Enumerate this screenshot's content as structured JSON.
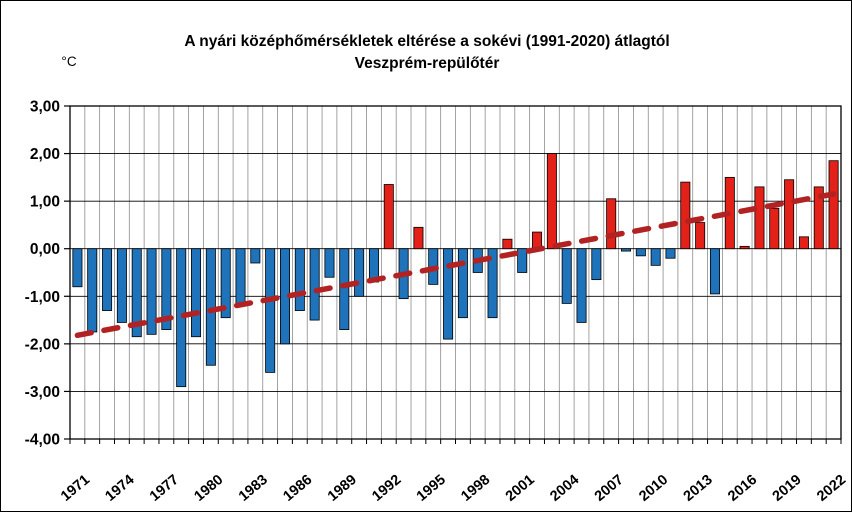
{
  "title_line1": "A nyári középhőmérsékletek eltérése a sokévi (1991-2020) átlagtól",
  "title_line2": "Veszprém-repülőtér",
  "y_axis_unit": "°C",
  "chart_data": {
    "type": "bar",
    "title": "A nyári középhőmérsékletek eltérése a sokévi (1991-2020) átlagtól",
    "subtitle": "Veszprém-repülőtér",
    "ylabel": "°C",
    "xlabel": "",
    "ylim": [
      -4,
      3
    ],
    "ytick_step": 1,
    "ytick_labels": [
      "3,00",
      "2,00",
      "1,00",
      "0,00",
      "-1,00",
      "-2,00",
      "-3,00",
      "-4,00"
    ],
    "grid": true,
    "legend_position": "none",
    "categories": [
      "1971",
      "1972",
      "1973",
      "1974",
      "1975",
      "1976",
      "1977",
      "1978",
      "1979",
      "1980",
      "1981",
      "1982",
      "1983",
      "1984",
      "1985",
      "1986",
      "1987",
      "1988",
      "1989",
      "1990",
      "1991",
      "1992",
      "1993",
      "1994",
      "1995",
      "1996",
      "1997",
      "1998",
      "1999",
      "2000",
      "2001",
      "2002",
      "2003",
      "2004",
      "2005",
      "2006",
      "2007",
      "2008",
      "2009",
      "2010",
      "2011",
      "2012",
      "2013",
      "2014",
      "2015",
      "2016",
      "2017",
      "2018",
      "2019",
      "2020",
      "2021",
      "2022"
    ],
    "values": [
      -0.8,
      -1.75,
      -1.3,
      -1.55,
      -1.85,
      -1.8,
      -1.7,
      -2.9,
      -1.85,
      -2.45,
      -1.45,
      -1.15,
      -0.3,
      -2.6,
      -2.0,
      -1.3,
      -1.5,
      -0.6,
      -1.7,
      -1.0,
      -0.7,
      1.35,
      -1.05,
      0.45,
      -0.75,
      -1.9,
      -1.45,
      -0.5,
      -1.45,
      0.2,
      -0.5,
      0.35,
      2.0,
      -1.15,
      -1.55,
      -0.65,
      1.05,
      -0.05,
      -0.15,
      -0.35,
      -0.2,
      1.4,
      0.55,
      -0.95,
      1.5,
      0.05,
      1.3,
      0.85,
      1.45,
      0.25,
      1.3,
      1.85
    ],
    "xtick_labels": [
      "1971",
      "1974",
      "1977",
      "1980",
      "1983",
      "1986",
      "1989",
      "1992",
      "1995",
      "1998",
      "2001",
      "2004",
      "2007",
      "2010",
      "2013",
      "2016",
      "2019",
      "2022"
    ],
    "positive_color": "#E32119",
    "negative_color": "#1E73BB",
    "bar_border_color": "#000000",
    "trend_line": {
      "style": "dashed",
      "color": "#B22222",
      "start_year": 1971,
      "start_value": -1.82,
      "end_year": 2022,
      "end_value": 1.15
    },
    "gridline_color_vertical": "#8C8C8C",
    "gridline_color_horizontal": "#000000"
  }
}
